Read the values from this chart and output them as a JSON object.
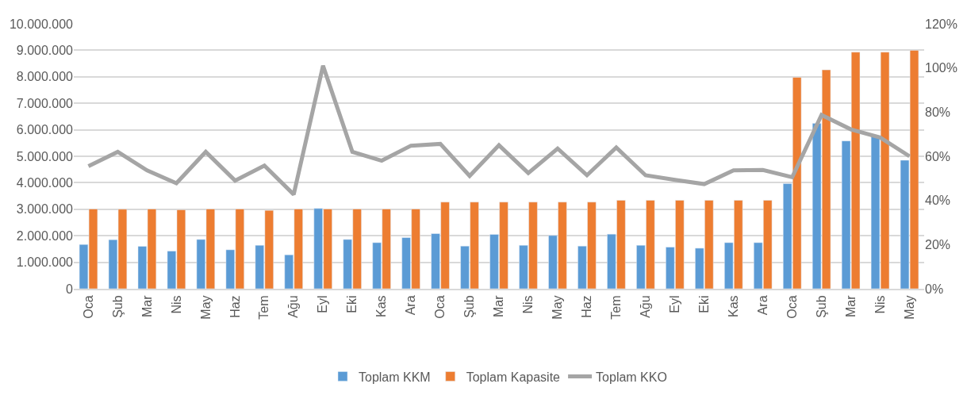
{
  "chart_data": {
    "type": "bar",
    "categories": [
      "Oca",
      "Şub",
      "Mar",
      "Nis",
      "May",
      "Haz",
      "Tem",
      "Ağu",
      "Eyl",
      "Eki",
      "Kas",
      "Ara",
      "Oca",
      "Şub",
      "Mar",
      "Nis",
      "May",
      "Haz",
      "Tem",
      "Ağu",
      "Eyl",
      "Eki",
      "Kas",
      "Ara",
      "Oca",
      "Şub",
      "Mar",
      "Nis",
      "May"
    ],
    "series": [
      {
        "name": "Toplam KKM",
        "color": "#5b9bd5",
        "values": [
          1670000,
          1850000,
          1600000,
          1420000,
          1860000,
          1470000,
          1640000,
          1280000,
          3030000,
          1860000,
          1740000,
          1930000,
          2080000,
          1610000,
          2050000,
          1640000,
          2010000,
          1610000,
          2060000,
          1640000,
          1570000,
          1530000,
          1740000,
          1740000,
          3970000,
          6240000,
          5580000,
          5770000,
          4850000
        ]
      },
      {
        "name": "Toplam Kapasite",
        "color": "#ed7d31",
        "values": [
          3010000,
          3000000,
          3010000,
          2980000,
          3010000,
          3010000,
          2960000,
          3010000,
          3010000,
          3010000,
          3010000,
          3010000,
          3270000,
          3270000,
          3270000,
          3270000,
          3270000,
          3270000,
          3340000,
          3340000,
          3340000,
          3340000,
          3340000,
          3340000,
          7980000,
          8260000,
          8930000,
          8930000,
          9000000
        ]
      },
      {
        "name": "Toplam KKO",
        "type": "line",
        "axis": "y2",
        "color": "#a5a5a5",
        "values": [
          55.5,
          62,
          53.6,
          47.8,
          62,
          49,
          55.8,
          42.7,
          101,
          62,
          58,
          64.8,
          65.6,
          51.1,
          65,
          52.4,
          63.5,
          51.4,
          64,
          51.4,
          49.3,
          47.4,
          53.6,
          53.8,
          50.5,
          78.7,
          72.2,
          68.5,
          60
        ]
      }
    ],
    "ylim": [
      0,
      10000000
    ],
    "yticks": [
      {
        "value": 0,
        "label": "0"
      },
      {
        "value": 1000000,
        "label": "1.000.000"
      },
      {
        "value": 2000000,
        "label": "2.000.000"
      },
      {
        "value": 3000000,
        "label": "3.000.000"
      },
      {
        "value": 4000000,
        "label": "4.000.000"
      },
      {
        "value": 5000000,
        "label": "5.000.000"
      },
      {
        "value": 6000000,
        "label": "6.000.000"
      },
      {
        "value": 7000000,
        "label": "7.000.000"
      },
      {
        "value": 8000000,
        "label": "8.000.000"
      },
      {
        "value": 9000000,
        "label": "9.000.000"
      },
      {
        "value": 10000000,
        "label": "10.000.000"
      }
    ],
    "y2lim": [
      0,
      120
    ],
    "y2ticks": [
      {
        "value": 0,
        "label": "0%"
      },
      {
        "value": 20,
        "label": "20%"
      },
      {
        "value": 40,
        "label": "40%"
      },
      {
        "value": 60,
        "label": "60%"
      },
      {
        "value": 80,
        "label": "80%"
      },
      {
        "value": 100,
        "label": "100%"
      },
      {
        "value": 120,
        "label": "120%"
      }
    ],
    "grid": "y",
    "legend": "bottom",
    "marker": "none"
  }
}
